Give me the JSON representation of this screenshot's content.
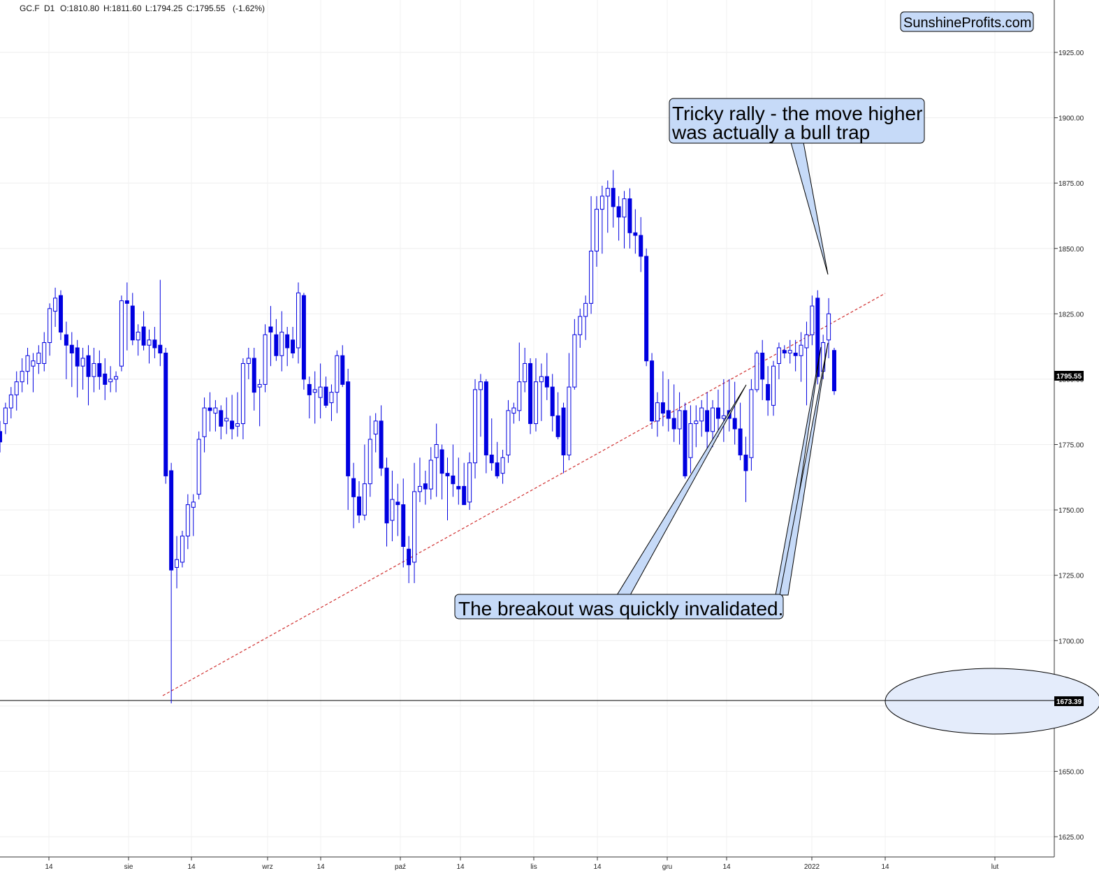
{
  "header": {
    "symbol": "GC.F",
    "timeframe": "D1",
    "open": "O:1810.80",
    "high": "H:1811.60",
    "low": "L:1794.25",
    "close": "C:1795.55",
    "change": "(-1.62%)"
  },
  "brand": "SunshineProfits.com",
  "annotations": {
    "bull_trap_line1": "Tricky rally - the move higher",
    "bull_trap_line2": "was actually a bull trap",
    "breakout": "The breakout was quickly invalidated."
  },
  "price_labels": {
    "last": "1795.55",
    "support": "1673.39"
  },
  "colors": {
    "candle": "#0000e0",
    "trendline": "#d03030",
    "callout_fill": "#c6daf8",
    "ellipse_fill": "#e4ecfb",
    "price_label_bg": "#000000"
  },
  "chart_data": {
    "type": "candlestick",
    "ylim": [
      1620,
      1935
    ],
    "y_ticks": [
      "1625.00",
      "1650.00",
      "1675.00",
      "1700.00",
      "1725.00",
      "1750.00",
      "1775.00",
      "1800.00",
      "1825.00",
      "1850.00",
      "1875.00",
      "1900.00",
      "1925.00"
    ],
    "x_ticks": [
      "14",
      "sie",
      "14",
      "wrz",
      "14",
      "paź",
      "14",
      "lis",
      "14",
      "gru",
      "14",
      "2022",
      "14",
      "lut"
    ],
    "last_close": 1795.55,
    "support_level": 1673.39,
    "trendline": {
      "from": [
        1675.5
      ],
      "to": [
        1828
      ]
    },
    "candles": [
      [
        1780,
        1784,
        1772,
        1776
      ],
      [
        1783,
        1791,
        1779,
        1789
      ],
      [
        1789,
        1797,
        1785,
        1794
      ],
      [
        1794,
        1803,
        1788,
        1799
      ],
      [
        1799,
        1808,
        1795,
        1803
      ],
      [
        1803,
        1812,
        1798,
        1809
      ],
      [
        1805,
        1810,
        1795,
        1807
      ],
      [
        1806,
        1813,
        1802,
        1810
      ],
      [
        1806,
        1818,
        1803,
        1814
      ],
      [
        1814,
        1829,
        1809,
        1827
      ],
      [
        1826,
        1835,
        1820,
        1831
      ],
      [
        1832,
        1834,
        1815,
        1818
      ],
      [
        1817,
        1822,
        1800,
        1813
      ],
      [
        1813,
        1818,
        1797,
        1810
      ],
      [
        1812,
        1815,
        1793,
        1805
      ],
      [
        1805,
        1812,
        1796,
        1808
      ],
      [
        1809,
        1813,
        1790,
        1801
      ],
      [
        1801,
        1812,
        1795,
        1806
      ],
      [
        1806,
        1811,
        1796,
        1801
      ],
      [
        1802,
        1808,
        1792,
        1798
      ],
      [
        1799,
        1805,
        1795,
        1800
      ],
      [
        1800,
        1803,
        1795,
        1801
      ],
      [
        1805,
        1832,
        1803,
        1830
      ],
      [
        1830,
        1837,
        1811,
        1829
      ],
      [
        1828,
        1833,
        1813,
        1815
      ],
      [
        1815,
        1821,
        1809,
        1818
      ],
      [
        1820,
        1826,
        1811,
        1813
      ],
      [
        1813,
        1819,
        1806,
        1815
      ],
      [
        1815,
        1820,
        1808,
        1812
      ],
      [
        1813,
        1838,
        1805,
        1810
      ],
      [
        1810,
        1812,
        1760,
        1763
      ],
      [
        1765,
        1768,
        1676,
        1727
      ],
      [
        1728,
        1740,
        1720,
        1731
      ],
      [
        1730,
        1742,
        1728,
        1740
      ],
      [
        1740,
        1756,
        1735,
        1752
      ],
      [
        1751,
        1756,
        1740,
        1753
      ],
      [
        1756,
        1780,
        1754,
        1777
      ],
      [
        1778,
        1793,
        1772,
        1789
      ],
      [
        1789,
        1795,
        1780,
        1788
      ],
      [
        1787,
        1792,
        1780,
        1789
      ],
      [
        1788,
        1790,
        1777,
        1782
      ],
      [
        1784,
        1793,
        1779,
        1785
      ],
      [
        1784,
        1794,
        1777,
        1781
      ],
      [
        1782,
        1795,
        1778,
        1783
      ],
      [
        1783,
        1808,
        1777,
        1806
      ],
      [
        1806,
        1812,
        1800,
        1808
      ],
      [
        1808,
        1812,
        1788,
        1795
      ],
      [
        1797,
        1800,
        1782,
        1798
      ],
      [
        1798,
        1821,
        1795,
        1817
      ],
      [
        1820,
        1828,
        1805,
        1818
      ],
      [
        1817,
        1823,
        1807,
        1809
      ],
      [
        1809,
        1826,
        1803,
        1818
      ],
      [
        1817,
        1820,
        1805,
        1812
      ],
      [
        1815,
        1820,
        1808,
        1810
      ],
      [
        1812,
        1837,
        1806,
        1833
      ],
      [
        1832,
        1833,
        1796,
        1800
      ],
      [
        1798,
        1801,
        1785,
        1794
      ],
      [
        1795,
        1803,
        1783,
        1796
      ],
      [
        1793,
        1806,
        1785,
        1797
      ],
      [
        1797,
        1801,
        1789,
        1790
      ],
      [
        1791,
        1798,
        1784,
        1795
      ],
      [
        1795,
        1811,
        1787,
        1809
      ],
      [
        1809,
        1813,
        1797,
        1798
      ],
      [
        1799,
        1804,
        1750,
        1763
      ],
      [
        1762,
        1768,
        1743,
        1755
      ],
      [
        1755,
        1761,
        1745,
        1748
      ],
      [
        1748,
        1775,
        1746,
        1760
      ],
      [
        1760,
        1786,
        1755,
        1777
      ],
      [
        1779,
        1787,
        1772,
        1784
      ],
      [
        1784,
        1790,
        1763,
        1766
      ],
      [
        1766,
        1770,
        1736,
        1745
      ],
      [
        1746,
        1765,
        1738,
        1754
      ],
      [
        1753,
        1760,
        1740,
        1752
      ],
      [
        1752,
        1762,
        1728,
        1736
      ],
      [
        1735,
        1740,
        1722,
        1729
      ],
      [
        1730,
        1768,
        1722,
        1757
      ],
      [
        1757,
        1770,
        1753,
        1759
      ],
      [
        1760,
        1765,
        1752,
        1758
      ],
      [
        1758,
        1774,
        1754,
        1769
      ],
      [
        1770,
        1783,
        1755,
        1775
      ],
      [
        1773,
        1775,
        1754,
        1764
      ],
      [
        1764,
        1770,
        1746,
        1763
      ],
      [
        1763,
        1775,
        1755,
        1760
      ],
      [
        1759,
        1770,
        1752,
        1758
      ],
      [
        1759,
        1768,
        1752,
        1752
      ],
      [
        1753,
        1772,
        1750,
        1768
      ],
      [
        1768,
        1800,
        1762,
        1796
      ],
      [
        1796,
        1802,
        1778,
        1799
      ],
      [
        1799,
        1800,
        1764,
        1771
      ],
      [
        1771,
        1785,
        1765,
        1768
      ],
      [
        1768,
        1776,
        1762,
        1763
      ],
      [
        1764,
        1773,
        1760,
        1770
      ],
      [
        1771,
        1792,
        1768,
        1788
      ],
      [
        1787,
        1791,
        1783,
        1789
      ],
      [
        1788,
        1814,
        1784,
        1799
      ],
      [
        1799,
        1812,
        1795,
        1806
      ],
      [
        1806,
        1808,
        1779,
        1783
      ],
      [
        1783,
        1808,
        1780,
        1799
      ],
      [
        1799,
        1806,
        1784,
        1801
      ],
      [
        1801,
        1810,
        1792,
        1797
      ],
      [
        1797,
        1802,
        1780,
        1786
      ],
      [
        1786,
        1795,
        1777,
        1778
      ],
      [
        1789,
        1791,
        1764,
        1771
      ],
      [
        1771,
        1810,
        1769,
        1797
      ],
      [
        1797,
        1823,
        1796,
        1817
      ],
      [
        1817,
        1827,
        1812,
        1824
      ],
      [
        1824,
        1832,
        1815,
        1829
      ],
      [
        1829,
        1870,
        1825,
        1849
      ],
      [
        1849,
        1870,
        1843,
        1865
      ],
      [
        1865,
        1874,
        1848,
        1870
      ],
      [
        1870,
        1876,
        1856,
        1873
      ],
      [
        1873,
        1880,
        1858,
        1866
      ],
      [
        1866,
        1870,
        1853,
        1862
      ],
      [
        1862,
        1872,
        1850,
        1869
      ],
      [
        1869,
        1873,
        1850,
        1856
      ],
      [
        1856,
        1865,
        1848,
        1855
      ],
      [
        1855,
        1862,
        1841,
        1847
      ],
      [
        1847,
        1850,
        1805,
        1807
      ],
      [
        1807,
        1810,
        1781,
        1784
      ],
      [
        1784,
        1795,
        1778,
        1791
      ],
      [
        1791,
        1803,
        1782,
        1787
      ],
      [
        1788,
        1800,
        1780,
        1785
      ],
      [
        1785,
        1798,
        1776,
        1781
      ],
      [
        1781,
        1795,
        1775,
        1788
      ],
      [
        1788,
        1791,
        1762,
        1763
      ],
      [
        1770,
        1790,
        1764,
        1783
      ],
      [
        1783,
        1790,
        1774,
        1784
      ],
      [
        1784,
        1792,
        1778,
        1789
      ],
      [
        1788,
        1795,
        1773,
        1780
      ],
      [
        1780,
        1792,
        1774,
        1789
      ],
      [
        1789,
        1796,
        1778,
        1785
      ],
      [
        1785,
        1800,
        1776,
        1786
      ],
      [
        1788,
        1800,
        1780,
        1785
      ],
      [
        1785,
        1799,
        1775,
        1781
      ],
      [
        1781,
        1791,
        1769,
        1771
      ],
      [
        1771,
        1778,
        1753,
        1765
      ],
      [
        1770,
        1800,
        1765,
        1796
      ],
      [
        1796,
        1811,
        1795,
        1810
      ],
      [
        1810,
        1815,
        1792,
        1800
      ],
      [
        1798,
        1805,
        1786,
        1792
      ],
      [
        1790,
        1807,
        1786,
        1805
      ],
      [
        1806,
        1814,
        1800,
        1812
      ],
      [
        1811,
        1813,
        1808,
        1810
      ],
      [
        1810,
        1815,
        1806,
        1811
      ],
      [
        1810,
        1815,
        1803,
        1809
      ],
      [
        1809,
        1818,
        1799,
        1813
      ],
      [
        1812,
        1822,
        1790,
        1817
      ],
      [
        1817,
        1832,
        1813,
        1828
      ],
      [
        1831,
        1834,
        1798,
        1801
      ],
      [
        1803,
        1817,
        1800,
        1814
      ],
      [
        1815,
        1831,
        1808,
        1825
      ],
      [
        1811,
        1812,
        1794,
        1795.55
      ]
    ]
  }
}
